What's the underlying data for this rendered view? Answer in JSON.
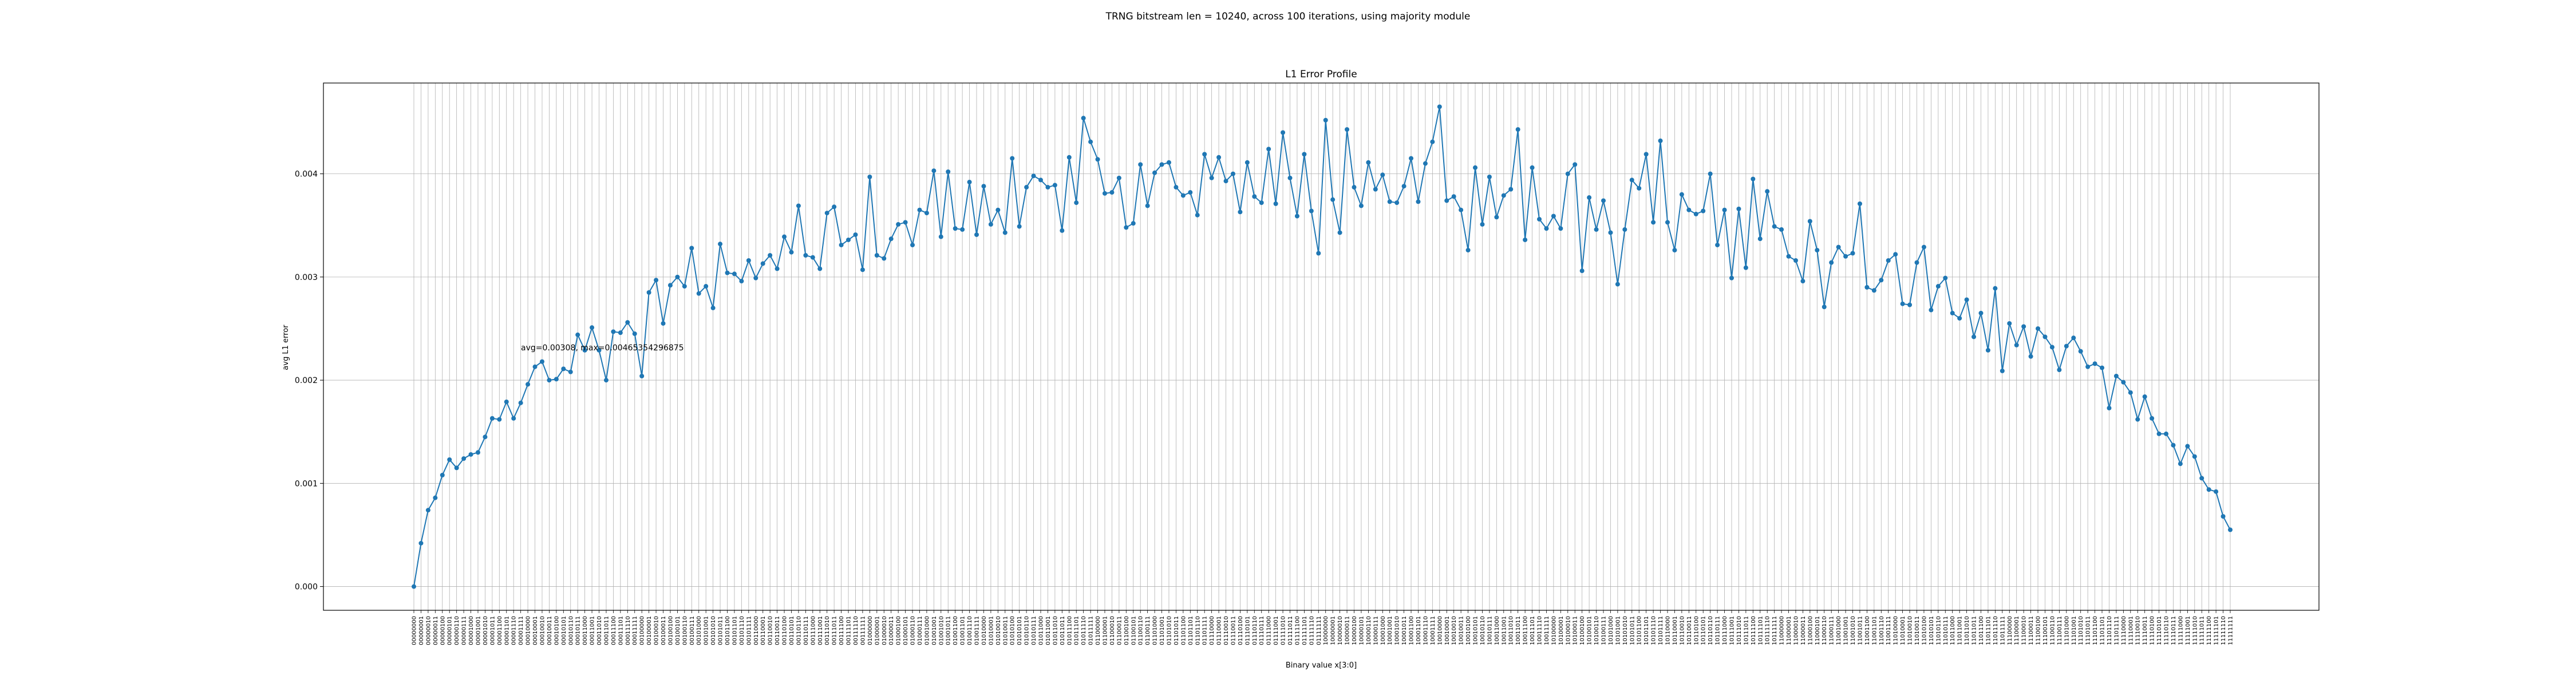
{
  "figure_title": "TRNG bitstream len = 10240, across 100 iterations, using majority module",
  "chart_data": {
    "type": "line",
    "title": "L1 Error Profile",
    "xlabel": "Binary value x[3:0]",
    "ylabel": "avg L1 error",
    "ylim": [
      -0.00023,
      0.00488
    ],
    "yticks": [
      "0.000",
      "0.001",
      "0.002",
      "0.003",
      "0.004"
    ],
    "grid": true,
    "annotation": "avg=0.00308, max=0.00465354296875",
    "color": "#1f77b4",
    "x_categories": [
      "00000000",
      "00000001",
      "00000010",
      "00000011",
      "00000100",
      "00000101",
      "00000110",
      "00000111",
      "00001000",
      "00001001",
      "00001010",
      "00001011",
      "00001100",
      "00001101",
      "00001110",
      "00001111",
      "00010000",
      "00010001",
      "00010010",
      "00010011",
      "00010100",
      "00010101",
      "00010110",
      "00010111",
      "00011000",
      "00011001",
      "00011010",
      "00011011",
      "00011100",
      "00011101",
      "00011110",
      "00011111",
      "00100000",
      "00100001",
      "00100010",
      "00100011",
      "00100100",
      "00100101",
      "00100110",
      "00100111",
      "00101000",
      "00101001",
      "00101010",
      "00101011",
      "00101100",
      "00101101",
      "00101110",
      "00101111",
      "00110000",
      "00110001",
      "00110010",
      "00110011",
      "00110100",
      "00110101",
      "00110110",
      "00110111",
      "00111000",
      "00111001",
      "00111010",
      "00111011",
      "00111100",
      "00111101",
      "00111110",
      "00111111",
      "01000000",
      "01000001",
      "01000010",
      "01000011",
      "01000100",
      "01000101",
      "01000110",
      "01000111",
      "01001000",
      "01001001",
      "01001010",
      "01001011",
      "01001100",
      "01001101",
      "01001110",
      "01001111",
      "01010000",
      "01010001",
      "01010010",
      "01010011",
      "01010100",
      "01010101",
      "01010110",
      "01010111",
      "01011000",
      "01011001",
      "01011010",
      "01011011",
      "01011100",
      "01011101",
      "01011110",
      "01011111",
      "01100000",
      "01100001",
      "01100010",
      "01100011",
      "01100100",
      "01100101",
      "01100110",
      "01100111",
      "01101000",
      "01101001",
      "01101010",
      "01101011",
      "01101100",
      "01101101",
      "01101110",
      "01101111",
      "01110000",
      "01110001",
      "01110010",
      "01110011",
      "01110100",
      "01110101",
      "01110110",
      "01110111",
      "01111000",
      "01111001",
      "01111010",
      "01111011",
      "01111100",
      "01111101",
      "01111110",
      "01111111",
      "10000000",
      "10000001",
      "10000010",
      "10000011",
      "10000100",
      "10000101",
      "10000110",
      "10000111",
      "10001000",
      "10001001",
      "10001010",
      "10001011",
      "10001100",
      "10001101",
      "10001110",
      "10001111",
      "10010000",
      "10010001",
      "10010010",
      "10010011",
      "10010100",
      "10010101",
      "10010110",
      "10010111",
      "10011000",
      "10011001",
      "10011010",
      "10011011",
      "10011100",
      "10011101",
      "10011110",
      "10011111",
      "10100000",
      "10100001",
      "10100010",
      "10100011",
      "10100100",
      "10100101",
      "10100110",
      "10100111",
      "10101000",
      "10101001",
      "10101010",
      "10101011",
      "10101100",
      "10101101",
      "10101110",
      "10101111",
      "10110000",
      "10110001",
      "10110010",
      "10110011",
      "10110100",
      "10110101",
      "10110110",
      "10110111",
      "10111000",
      "10111001",
      "10111010",
      "10111011",
      "10111100",
      "10111101",
      "10111110",
      "10111111",
      "11000000",
      "11000001",
      "11000010",
      "11000011",
      "11000100",
      "11000101",
      "11000110",
      "11000111",
      "11001000",
      "11001001",
      "11001010",
      "11001011",
      "11001100",
      "11001101",
      "11001110",
      "11001111",
      "11010000",
      "11010001",
      "11010010",
      "11010011",
      "11010100",
      "11010101",
      "11010110",
      "11010111",
      "11011000",
      "11011001",
      "11011010",
      "11011011",
      "11011100",
      "11011101",
      "11011110",
      "11011111",
      "11100000",
      "11100001",
      "11100010",
      "11100011",
      "11100100",
      "11100101",
      "11100110",
      "11100111",
      "11101000",
      "11101001",
      "11101010",
      "11101011",
      "11101100",
      "11101101",
      "11101110",
      "11101111",
      "11110000",
      "11110001",
      "11110010",
      "11110011",
      "11110100",
      "11110101",
      "11110110",
      "11110111",
      "11111000",
      "11111001",
      "11111010",
      "11111011",
      "11111100",
      "11111101",
      "11111110",
      "11111111"
    ],
    "values": [
      0.0,
      0.00042,
      0.00074,
      0.00086,
      0.00108,
      0.00123,
      0.00115,
      0.00124,
      0.00128,
      0.0013,
      0.00145,
      0.00163,
      0.00162,
      0.00179,
      0.00163,
      0.00178,
      0.00196,
      0.00213,
      0.00218,
      0.002,
      0.00201,
      0.00211,
      0.00208,
      0.00244,
      0.00229,
      0.00251,
      0.00229,
      0.002,
      0.00247,
      0.00246,
      0.00256,
      0.00245,
      0.00204,
      0.00285,
      0.00297,
      0.00255,
      0.00292,
      0.003,
      0.00291,
      0.00328,
      0.00284,
      0.00291,
      0.0027,
      0.00332,
      0.00304,
      0.00303,
      0.00296,
      0.00316,
      0.00299,
      0.00313,
      0.00321,
      0.00308,
      0.00339,
      0.00324,
      0.00369,
      0.00321,
      0.00319,
      0.00308,
      0.00362,
      0.00368,
      0.00331,
      0.00336,
      0.00341,
      0.00307,
      0.00397,
      0.00321,
      0.00318,
      0.00337,
      0.00351,
      0.00353,
      0.00331,
      0.00365,
      0.00362,
      0.00403,
      0.00339,
      0.00402,
      0.00347,
      0.00346,
      0.00392,
      0.00341,
      0.00388,
      0.00351,
      0.00365,
      0.00343,
      0.00415,
      0.00349,
      0.00387,
      0.00398,
      0.00394,
      0.00387,
      0.00389,
      0.00345,
      0.00416,
      0.00372,
      0.00454,
      0.00431,
      0.00414,
      0.00381,
      0.00382,
      0.00396,
      0.00348,
      0.00352,
      0.00409,
      0.00369,
      0.00401,
      0.00409,
      0.00411,
      0.00387,
      0.00379,
      0.00382,
      0.0036,
      0.00419,
      0.00396,
      0.00416,
      0.00393,
      0.004,
      0.00363,
      0.00411,
      0.00378,
      0.00372,
      0.00424,
      0.00371,
      0.0044,
      0.00396,
      0.00359,
      0.00419,
      0.00364,
      0.00323,
      0.00452,
      0.00375,
      0.00343,
      0.00443,
      0.00387,
      0.00369,
      0.00411,
      0.00385,
      0.00399,
      0.00373,
      0.00372,
      0.00388,
      0.00415,
      0.00373,
      0.0041,
      0.00431,
      0.00465,
      0.00374,
      0.00378,
      0.00365,
      0.00326,
      0.00406,
      0.00351,
      0.00397,
      0.00358,
      0.00379,
      0.00385,
      0.00443,
      0.00336,
      0.00406,
      0.00356,
      0.00347,
      0.00359,
      0.00347,
      0.004,
      0.00409,
      0.00306,
      0.00377,
      0.00346,
      0.00374,
      0.00343,
      0.00293,
      0.00346,
      0.00394,
      0.00386,
      0.00419,
      0.00353,
      0.00432,
      0.00353,
      0.00326,
      0.0038,
      0.00365,
      0.00361,
      0.00364,
      0.004,
      0.00331,
      0.00365,
      0.00299,
      0.00366,
      0.00309,
      0.00395,
      0.00337,
      0.00383,
      0.00349,
      0.00346,
      0.0032,
      0.00316,
      0.00296,
      0.00354,
      0.00326,
      0.00271,
      0.00314,
      0.00329,
      0.0032,
      0.00323,
      0.00371,
      0.0029,
      0.00287,
      0.00297,
      0.00316,
      0.00322,
      0.00274,
      0.00273,
      0.00314,
      0.00329,
      0.00268,
      0.00291,
      0.00299,
      0.00265,
      0.0026,
      0.00278,
      0.00242,
      0.00265,
      0.00229,
      0.00289,
      0.00209,
      0.00255,
      0.00234,
      0.00252,
      0.00223,
      0.0025,
      0.00242,
      0.00232,
      0.0021,
      0.00233,
      0.00241,
      0.00228,
      0.00213,
      0.00216,
      0.00212,
      0.00173,
      0.00204,
      0.00198,
      0.00188,
      0.00162,
      0.00184,
      0.00163,
      0.00148,
      0.00148,
      0.00137,
      0.00119,
      0.00136,
      0.00126,
      0.00105,
      0.00094,
      0.00092,
      0.00068,
      0.00055
    ]
  }
}
